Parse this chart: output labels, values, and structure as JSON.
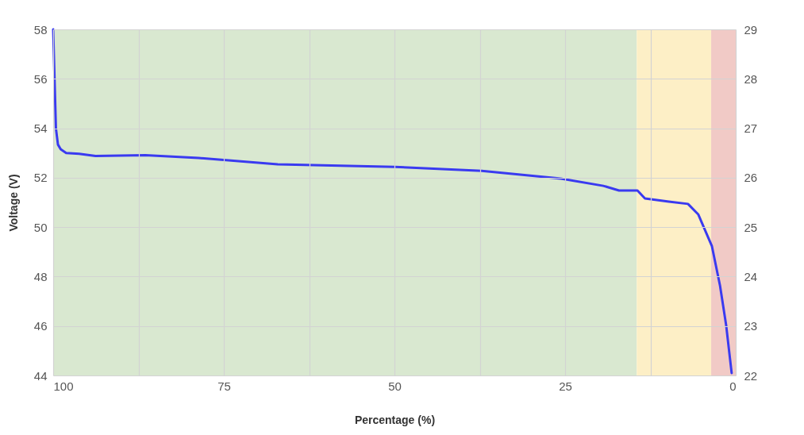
{
  "chart_data": {
    "type": "line",
    "xlabel": "Percentage (%)",
    "ylabel": "Voltage (V)",
    "xlim": [
      100,
      0
    ],
    "xticks": [
      100,
      {
        "value": 87.5,
        "label": null
      },
      75,
      {
        "value": 62.5,
        "label": null
      },
      50,
      {
        "value": 37.5,
        "label": null
      },
      25,
      {
        "value": 12.5,
        "label": null
      },
      0
    ],
    "ylim": [
      44,
      58
    ],
    "yticks": [
      44,
      46,
      48,
      50,
      52,
      54,
      56,
      58
    ],
    "y2lim": [
      22,
      29
    ],
    "y2ticks": [
      22,
      23,
      24,
      25,
      26,
      27,
      28,
      29
    ],
    "grid": true,
    "legend": false,
    "marker": "none",
    "line_style": "solid",
    "series": [
      {
        "color": "#3a3af0",
        "x": [
          100,
          99.8,
          99.6,
          99.3,
          98.9,
          98.1,
          96.2,
          93.8,
          86.5,
          78.7,
          67.1,
          50,
          37.2,
          25.6,
          19.4,
          17.1,
          14.4,
          13.3,
          9.8,
          7.0,
          5.5,
          3.5,
          2.3,
          1.4,
          0.6
        ],
        "values": [
          58,
          56,
          54,
          53.34,
          53.15,
          53.0,
          52.97,
          52.88,
          52.91,
          52.8,
          52.54,
          52.44,
          52.28,
          51.96,
          51.67,
          51.48,
          51.48,
          51.16,
          51.03,
          50.94,
          50.52,
          49.24,
          47.63,
          46.02,
          44.1
        ]
      }
    ],
    "bands": [
      {
        "axis": "x",
        "from": 100,
        "to": 14.5,
        "color": "#d9e8d0"
      },
      {
        "axis": "x",
        "from": 14.5,
        "to": 3.6,
        "color": "#fdefc6"
      },
      {
        "axis": "x",
        "from": 3.6,
        "to": 0,
        "color": "#f1cac6"
      }
    ]
  }
}
